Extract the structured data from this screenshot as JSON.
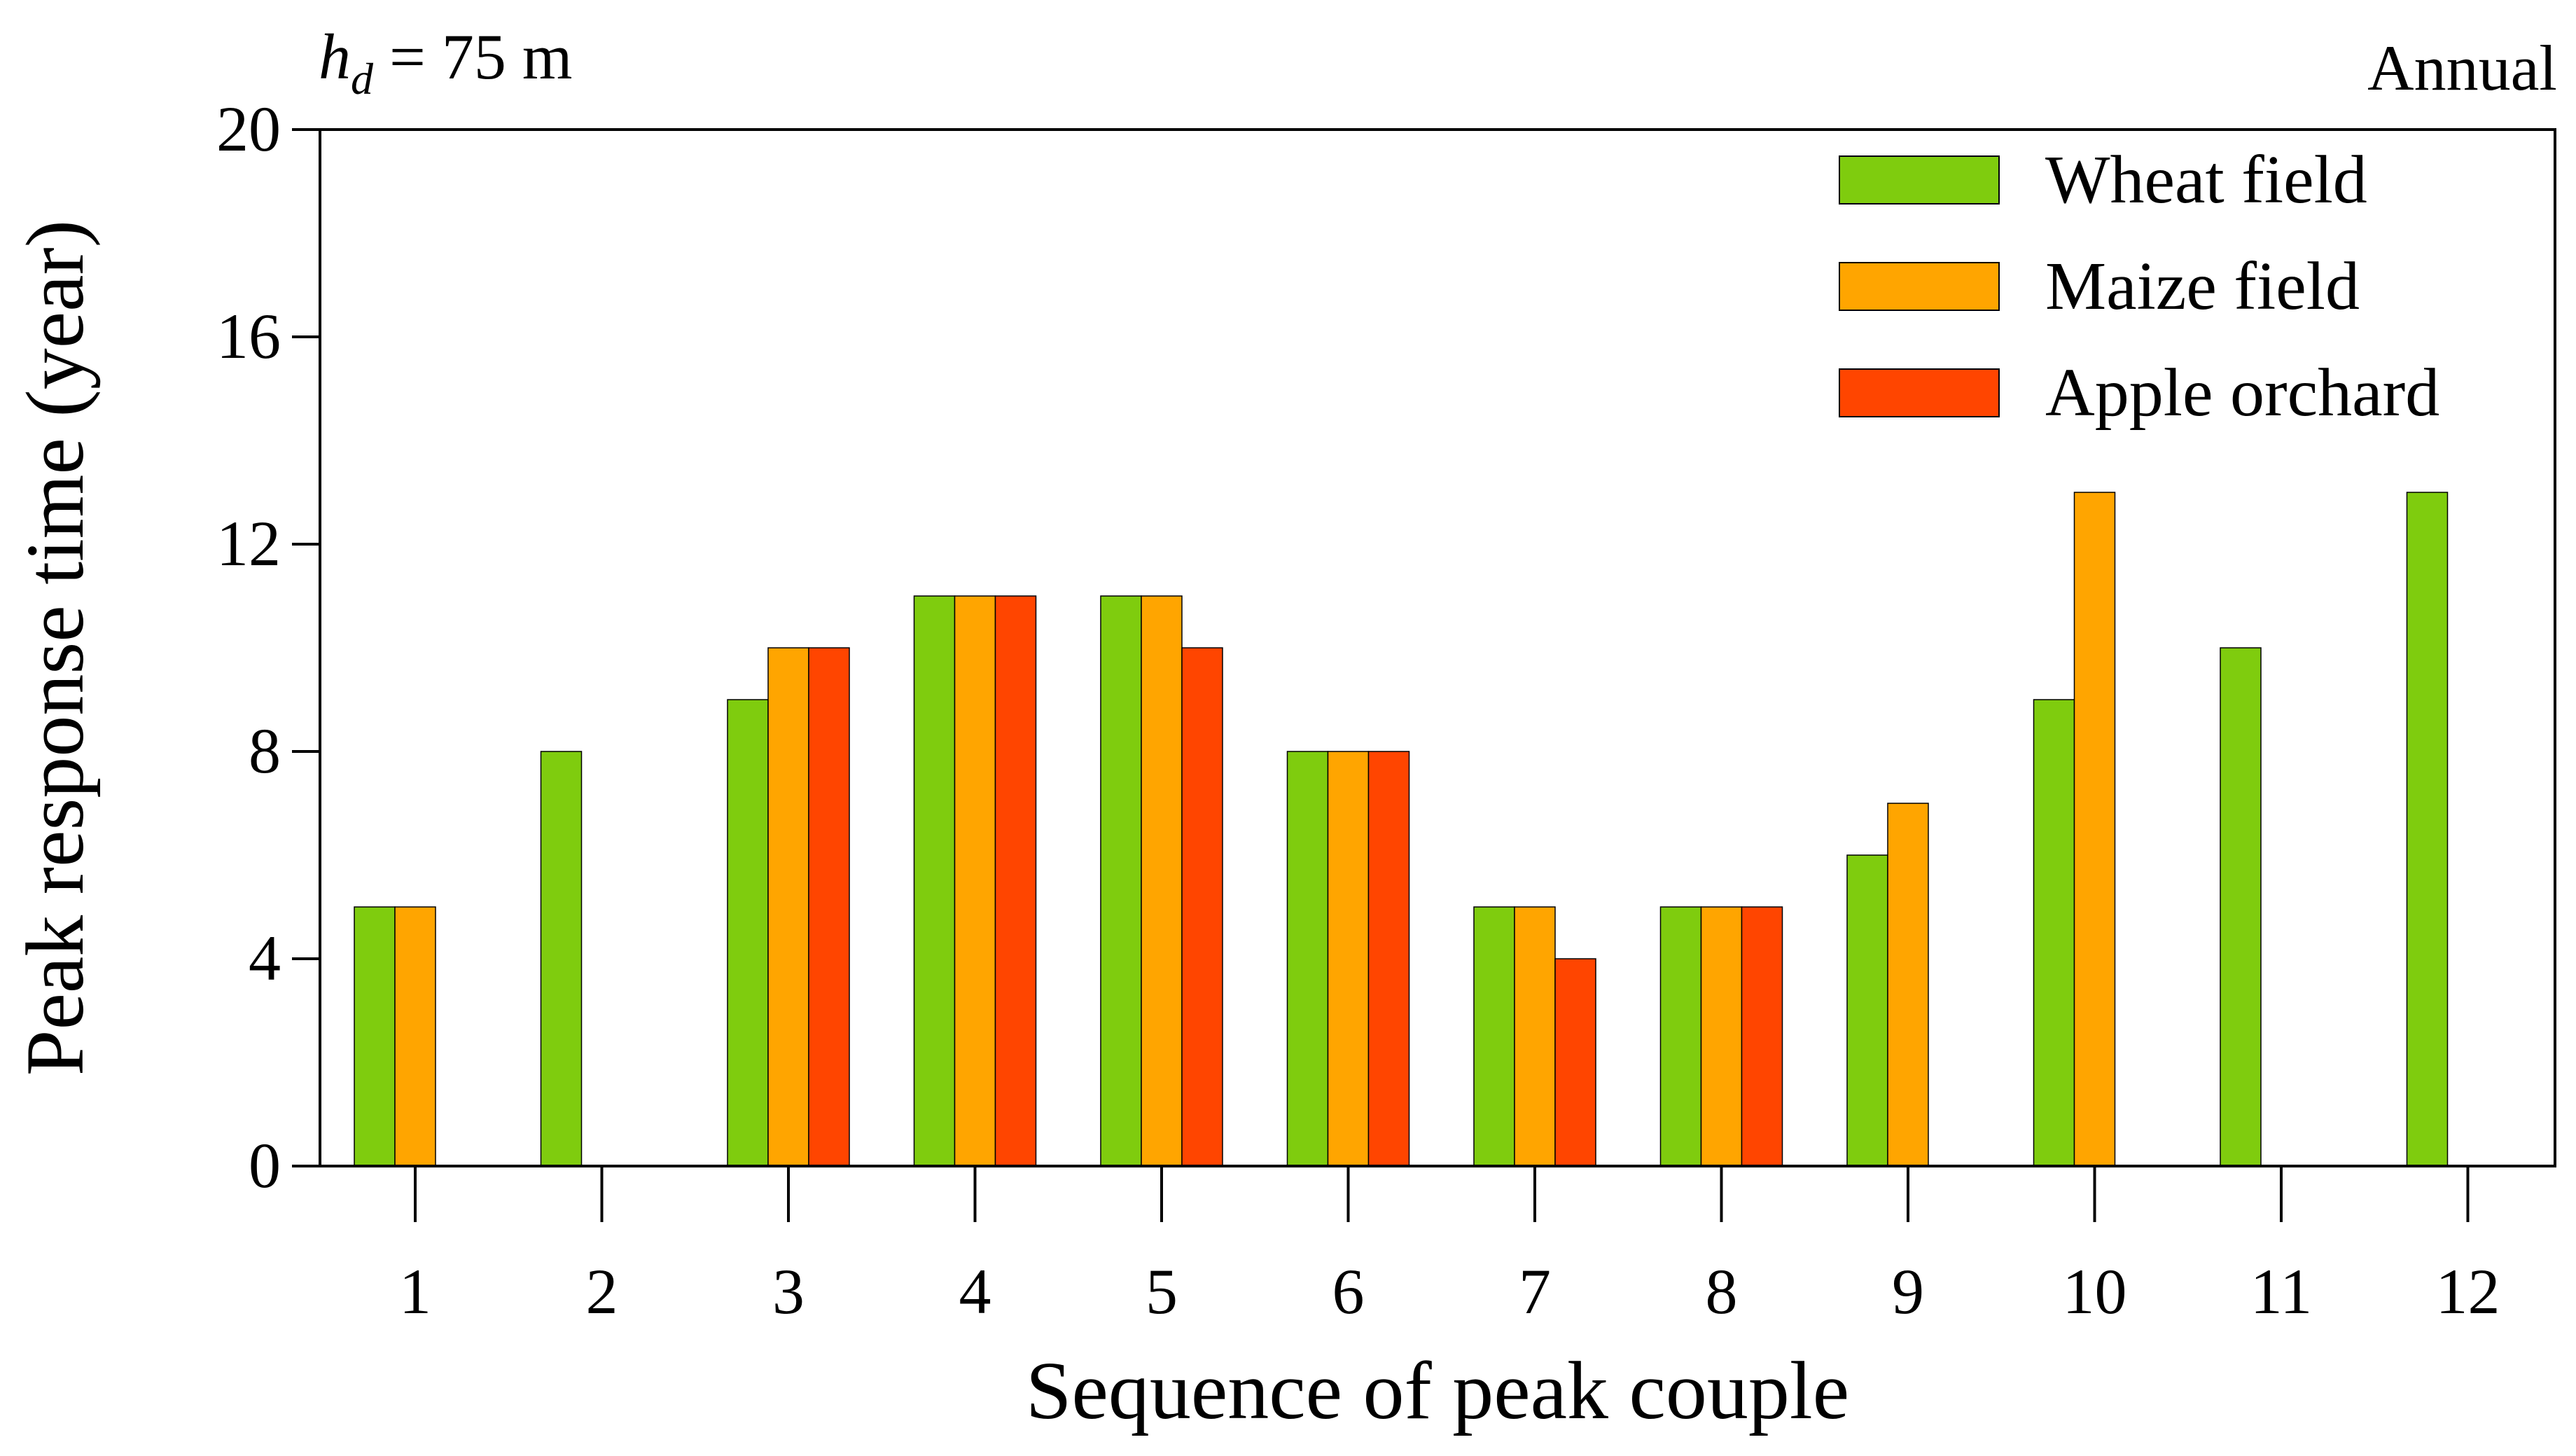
{
  "chart_data": {
    "type": "bar",
    "annotation_left": "h_d = 75 m",
    "annotation_left_parts": {
      "symbol": "h",
      "subscript": "d",
      "rest": " = 75 m"
    },
    "annotation_right": "Annual",
    "xlabel": "Sequence of peak couple",
    "ylabel": "Peak response time (year)",
    "ylim": [
      0,
      20
    ],
    "yticks": [
      0,
      4,
      8,
      12,
      16,
      20
    ],
    "categories": [
      "1",
      "2",
      "3",
      "4",
      "5",
      "6",
      "7",
      "8",
      "9",
      "10",
      "11",
      "12"
    ],
    "legend_position": "top-right",
    "grid": false,
    "series": [
      {
        "name": "Wheat field",
        "color": "#7fcc0e",
        "values": [
          5,
          8,
          9,
          11,
          11,
          8,
          5,
          5,
          6,
          9,
          10,
          13
        ]
      },
      {
        "name": "Maize field",
        "color": "#ffa500",
        "values": [
          5,
          null,
          10,
          11,
          11,
          8,
          5,
          5,
          7,
          13,
          null,
          null
        ]
      },
      {
        "name": "Apple orchard",
        "color": "#ff4500",
        "values": [
          null,
          null,
          10,
          11,
          10,
          8,
          4,
          5,
          null,
          null,
          null,
          null
        ]
      }
    ]
  }
}
